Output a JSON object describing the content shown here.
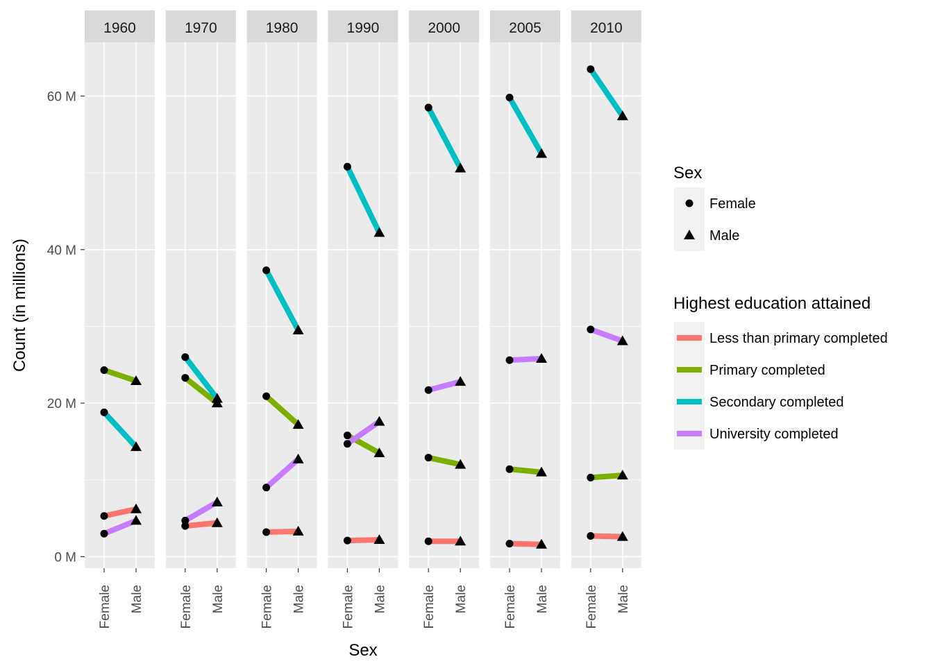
{
  "chart_data": {
    "type": "line",
    "facet_by": "year",
    "facets": [
      "1960",
      "1970",
      "1980",
      "1990",
      "2000",
      "2005",
      "2010"
    ],
    "x_categories": [
      "Female",
      "Male"
    ],
    "xlabel": "Sex",
    "ylabel": "Count (in millions)",
    "ylim": [
      -1.5,
      67
    ],
    "yticks": [
      0,
      20,
      40,
      60
    ],
    "ytick_labels": [
      "0 M",
      "20 M",
      "40 M",
      "60 M"
    ],
    "grid": true,
    "legend_position": "right",
    "shape_legend": {
      "title": "Sex",
      "items": [
        {
          "label": "Female",
          "shape": "circle"
        },
        {
          "label": "Male",
          "shape": "triangle"
        }
      ]
    },
    "color_legend": {
      "title": "Highest education attained",
      "items": [
        {
          "label": "Less than primary completed",
          "color": "#F8766D"
        },
        {
          "label": "Primary completed",
          "color": "#7CAE00"
        },
        {
          "label": "Secondary completed",
          "color": "#00BFC4"
        },
        {
          "label": "University completed",
          "color": "#C77CFF"
        }
      ]
    },
    "series": [
      {
        "name": "Less than primary completed",
        "color": "#F8766D",
        "values": {
          "1960": [
            5.3,
            6.2
          ],
          "1970": [
            4.0,
            4.4
          ],
          "1980": [
            3.2,
            3.3
          ],
          "1990": [
            2.1,
            2.2
          ],
          "2000": [
            2.0,
            2.0
          ],
          "2005": [
            1.7,
            1.6
          ],
          "2010": [
            2.7,
            2.6
          ]
        }
      },
      {
        "name": "Primary completed",
        "color": "#7CAE00",
        "values": {
          "1960": [
            24.3,
            22.9
          ],
          "1970": [
            23.3,
            20.0
          ],
          "1980": [
            20.9,
            17.2
          ],
          "1990": [
            15.8,
            13.5
          ],
          "2000": [
            12.9,
            12.0
          ],
          "2005": [
            11.4,
            11.0
          ],
          "2010": [
            10.3,
            10.6
          ]
        }
      },
      {
        "name": "Secondary completed",
        "color": "#00BFC4",
        "values": {
          "1960": [
            18.8,
            14.3
          ],
          "1970": [
            26.0,
            20.6
          ],
          "1980": [
            37.3,
            29.5
          ],
          "1990": [
            50.8,
            42.2
          ],
          "2000": [
            58.5,
            50.6
          ],
          "2005": [
            59.8,
            52.5
          ],
          "2010": [
            63.5,
            57.4
          ]
        }
      },
      {
        "name": "University completed",
        "color": "#C77CFF",
        "values": {
          "1960": [
            3.0,
            4.7
          ],
          "1970": [
            4.7,
            7.1
          ],
          "1980": [
            9.0,
            12.7
          ],
          "1990": [
            14.7,
            17.6
          ],
          "2000": [
            21.7,
            22.8
          ],
          "2005": [
            25.6,
            25.8
          ],
          "2010": [
            29.6,
            28.1
          ]
        }
      }
    ]
  }
}
